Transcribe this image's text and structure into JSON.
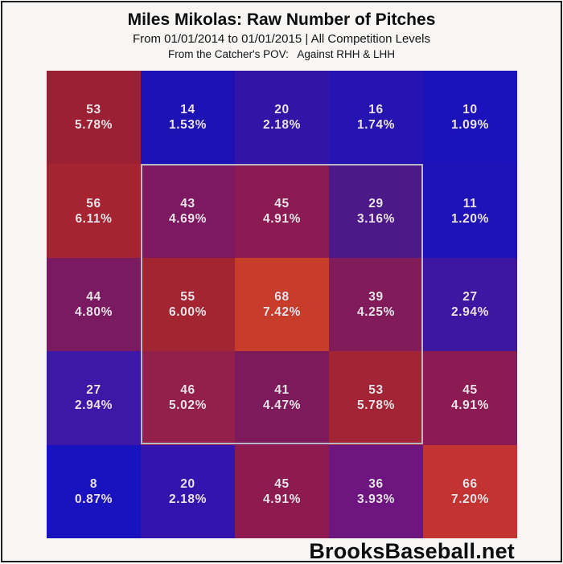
{
  "header": {
    "title": "Miles Mikolas: Raw Number of Pitches",
    "subtitle": "From 01/01/2014 to 01/01/2015 | All Competition Levels",
    "pov_line": "From the Catcher's POV:   Against RHH & LHH"
  },
  "footer": {
    "brand": "BrooksBaseball.net"
  },
  "chart_data": {
    "type": "heatmap",
    "title": "Miles Mikolas: Raw Number of Pitches",
    "subtitle": "From 01/01/2014 to 01/01/2015 | All Competition Levels",
    "pov": "From the Catcher's POV: Against RHH & LHH",
    "rows": 5,
    "cols": 5,
    "value_label": "raw pitch count",
    "secondary_label": "percent of total pitches",
    "color_scale": {
      "low_color": "#1912bf",
      "mid_color": "#7d1960",
      "high_color": "#c73c2b",
      "low": 8,
      "high": 68
    },
    "strike_zone_outline": {
      "row_start": 2,
      "col_start": 2,
      "row_end": 4,
      "col_end": 4,
      "border_color": "#b9b6c6"
    },
    "cell_text_color": "#ece3e9",
    "cells": [
      [
        {
          "count": "53",
          "pct": "5.78%",
          "color": "#9c2034"
        },
        {
          "count": "14",
          "pct": "1.53%",
          "color": "#1d13b4"
        },
        {
          "count": "20",
          "pct": "2.18%",
          "color": "#3314a6"
        },
        {
          "count": "16",
          "pct": "1.74%",
          "color": "#2614b2"
        },
        {
          "count": "10",
          "pct": "1.09%",
          "color": "#1b12bb"
        }
      ],
      [
        {
          "count": "56",
          "pct": "6.11%",
          "color": "#a62431"
        },
        {
          "count": "43",
          "pct": "4.69%",
          "color": "#7d1960"
        },
        {
          "count": "45",
          "pct": "4.91%",
          "color": "#8c1b53"
        },
        {
          "count": "29",
          "pct": "3.16%",
          "color": "#4c1a88"
        },
        {
          "count": "11",
          "pct": "1.20%",
          "color": "#1d13b8"
        }
      ],
      [
        {
          "count": "44",
          "pct": "4.80%",
          "color": "#7a1a61"
        },
        {
          "count": "55",
          "pct": "6.00%",
          "color": "#a32532"
        },
        {
          "count": "68",
          "pct": "7.42%",
          "color": "#c73c2b"
        },
        {
          "count": "39",
          "pct": "4.25%",
          "color": "#811b5a"
        },
        {
          "count": "27",
          "pct": "2.94%",
          "color": "#3d16a2"
        }
      ],
      [
        {
          "count": "27",
          "pct": "2.94%",
          "color": "#3d17a6"
        },
        {
          "count": "46",
          "pct": "5.02%",
          "color": "#93204a"
        },
        {
          "count": "41",
          "pct": "4.47%",
          "color": "#7d1a5b"
        },
        {
          "count": "53",
          "pct": "5.78%",
          "color": "#a32434"
        },
        {
          "count": "45",
          "pct": "4.91%",
          "color": "#8c1b53"
        }
      ],
      [
        {
          "count": "8",
          "pct": "0.87%",
          "color": "#1913bf"
        },
        {
          "count": "20",
          "pct": "2.18%",
          "color": "#3414ad"
        },
        {
          "count": "45",
          "pct": "4.91%",
          "color": "#8d1b50"
        },
        {
          "count": "36",
          "pct": "3.93%",
          "color": "#6d1680"
        },
        {
          "count": "66",
          "pct": "7.20%",
          "color": "#c33331"
        }
      ]
    ]
  }
}
